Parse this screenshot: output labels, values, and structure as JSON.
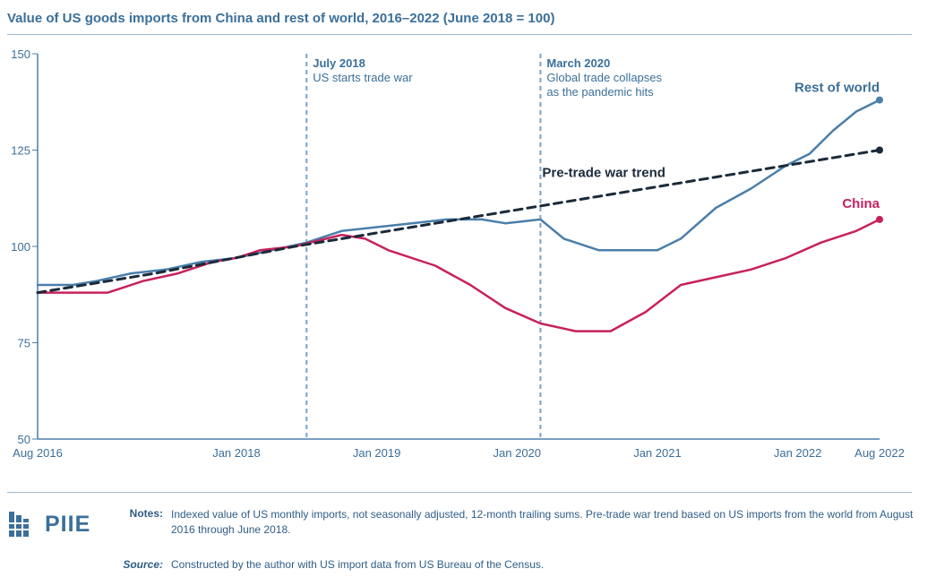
{
  "chart_data": {
    "type": "line",
    "title": "Value of US goods imports from China and rest of world, 2016–2022 (June 2018 = 100)",
    "xlabel": "",
    "ylabel": "",
    "ylim": [
      50,
      150
    ],
    "yticks": [
      50,
      75,
      100,
      125,
      150
    ],
    "xlim": [
      "2016-08",
      "2022-08"
    ],
    "xticks": [
      {
        "date": "2016-08",
        "label": "Aug 2016"
      },
      {
        "date": "2018-01",
        "label": "Jan 2018"
      },
      {
        "date": "2019-01",
        "label": "Jan 2019"
      },
      {
        "date": "2020-01",
        "label": "Jan 2020"
      },
      {
        "date": "2021-01",
        "label": "Jan 2021"
      },
      {
        "date": "2022-01",
        "label": "Jan 2022"
      },
      {
        "date": "2022-08",
        "label": "Aug 2022"
      }
    ],
    "grid": false,
    "annotations": [
      {
        "date": "2018-07",
        "heading": "July 2018",
        "lines": [
          "US starts trade war"
        ]
      },
      {
        "date": "2020-03",
        "heading": "March 2020",
        "lines": [
          "Global trade collapses",
          "as the pandemic hits"
        ]
      }
    ],
    "series": [
      {
        "name": "Rest of world",
        "color": "#4a7fab",
        "style": "solid",
        "points": [
          [
            "2016-08",
            90
          ],
          [
            "2016-11",
            90
          ],
          [
            "2017-01",
            91
          ],
          [
            "2017-04",
            93
          ],
          [
            "2017-07",
            94
          ],
          [
            "2017-10",
            96
          ],
          [
            "2018-01",
            97
          ],
          [
            "2018-04",
            99
          ],
          [
            "2018-07",
            101
          ],
          [
            "2018-10",
            104
          ],
          [
            "2019-01",
            105
          ],
          [
            "2019-04",
            106
          ],
          [
            "2019-07",
            107
          ],
          [
            "2019-10",
            107
          ],
          [
            "2019-12",
            106
          ],
          [
            "2020-03",
            107
          ],
          [
            "2020-05",
            102
          ],
          [
            "2020-08",
            99
          ],
          [
            "2020-11",
            99
          ],
          [
            "2021-01",
            99
          ],
          [
            "2021-03",
            102
          ],
          [
            "2021-06",
            110
          ],
          [
            "2021-09",
            115
          ],
          [
            "2021-12",
            121
          ],
          [
            "2022-02",
            124
          ],
          [
            "2022-04",
            130
          ],
          [
            "2022-06",
            135
          ],
          [
            "2022-08",
            138
          ]
        ]
      },
      {
        "name": "China",
        "color": "#c7215d",
        "style": "solid",
        "points": [
          [
            "2016-08",
            88
          ],
          [
            "2016-12",
            88
          ],
          [
            "2017-02",
            88
          ],
          [
            "2017-05",
            91
          ],
          [
            "2017-08",
            93
          ],
          [
            "2017-11",
            96
          ],
          [
            "2018-01",
            97
          ],
          [
            "2018-03",
            99
          ],
          [
            "2018-06",
            100
          ],
          [
            "2018-10",
            103
          ],
          [
            "2018-12",
            102
          ],
          [
            "2019-02",
            99
          ],
          [
            "2019-06",
            95
          ],
          [
            "2019-09",
            90
          ],
          [
            "2019-12",
            84
          ],
          [
            "2020-03",
            80
          ],
          [
            "2020-06",
            78
          ],
          [
            "2020-09",
            78
          ],
          [
            "2020-12",
            83
          ],
          [
            "2021-03",
            90
          ],
          [
            "2021-06",
            92
          ],
          [
            "2021-09",
            94
          ],
          [
            "2021-12",
            97
          ],
          [
            "2022-03",
            101
          ],
          [
            "2022-06",
            104
          ],
          [
            "2022-08",
            107
          ]
        ]
      },
      {
        "name": "Pre-trade war trend",
        "color": "#1b2a3a",
        "style": "dashed",
        "points": [
          [
            "2016-08",
            88
          ],
          [
            "2017-06",
            93
          ],
          [
            "2018-06",
            100
          ],
          [
            "2019-06",
            106
          ],
          [
            "2020-06",
            112
          ],
          [
            "2021-06",
            118
          ],
          [
            "2022-08",
            125
          ]
        ]
      }
    ]
  },
  "notes": {
    "label": "Notes:",
    "text": "Indexed value of US monthly imports, not seasonally adjusted, 12-month trailing sums. Pre-trade war trend based on US imports from the world from August 2016 through June 2018."
  },
  "source": {
    "label": "Source:",
    "text": "Constructed by the author with US import data from US Bureau of the Census."
  },
  "logo": {
    "text": "PIIE",
    "color": "#3b6f9a"
  }
}
